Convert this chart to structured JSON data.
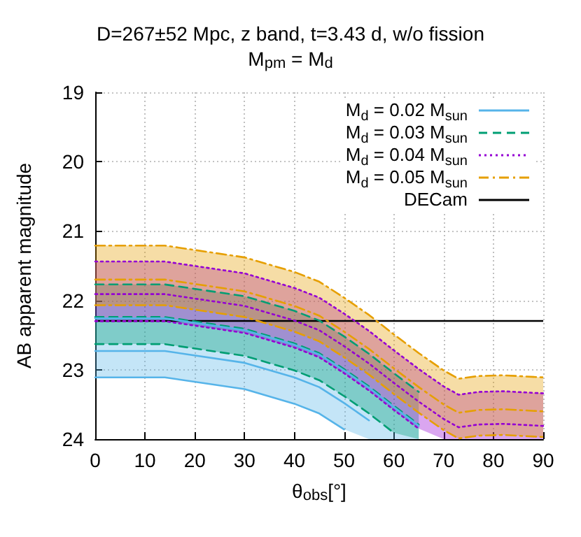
{
  "chart_data": {
    "type": "line",
    "title": "D=267±52 Mpc, z band, t=3.43 d, w/o fission",
    "subtitle": "M$_{pm}$ = M$_{d}$",
    "xlabel": "θ$_{obs}$[°]",
    "ylabel": "AB apparent magnitude",
    "x": [
      0,
      14,
      30,
      40,
      45,
      50,
      55,
      60,
      65,
      70,
      73,
      77,
      82,
      90
    ],
    "series": [
      {
        "name": "M$_{d}$ = 0.02 M$_{sun}$",
        "color": "#56b4e9",
        "line_style": "solid",
        "values": [
          22.73,
          22.73,
          22.9,
          23.11,
          23.25,
          23.48,
          23.73,
          null,
          null,
          null,
          null,
          null,
          null,
          null
        ],
        "lower": [
          22.26,
          22.26,
          22.43,
          22.64,
          22.78,
          23.01,
          23.26,
          23.54,
          23.81,
          null,
          null,
          null,
          null,
          null
        ],
        "upper": [
          23.11,
          23.11,
          23.28,
          23.49,
          23.63,
          23.86,
          24,
          24,
          24,
          null,
          null,
          null,
          null,
          null
        ]
      },
      {
        "name": "M$_{d}$ = 0.03 M$_{sun}$",
        "color": "#009e73",
        "line_style": "dashed",
        "values": [
          22.24,
          22.24,
          22.41,
          22.62,
          22.76,
          22.99,
          23.24,
          23.52,
          23.79,
          null,
          null,
          null,
          null,
          null
        ],
        "lower": [
          21.77,
          21.77,
          21.94,
          22.15,
          22.29,
          22.52,
          22.77,
          23.05,
          23.32,
          null,
          null,
          null,
          null,
          null
        ],
        "upper": [
          22.63,
          22.63,
          22.8,
          23.01,
          23.15,
          23.38,
          23.63,
          23.91,
          24,
          null,
          null,
          null,
          null,
          null
        ]
      },
      {
        "name": "M$_{d}$ = 0.04 M$_{sun}$",
        "color": "#9400d3",
        "line_style": "dotted",
        "values": [
          21.91,
          21.91,
          22.08,
          22.29,
          22.43,
          22.66,
          22.91,
          23.19,
          23.46,
          23.71,
          23.83,
          23.79,
          23.78,
          23.81
        ],
        "lower": [
          21.44,
          21.44,
          21.61,
          21.82,
          21.96,
          22.19,
          22.44,
          22.72,
          22.99,
          23.24,
          23.36,
          23.32,
          23.31,
          23.34
        ],
        "upper": [
          22.3,
          22.3,
          22.47,
          22.68,
          22.82,
          23.05,
          23.3,
          23.58,
          23.85,
          24,
          24,
          24,
          24,
          24
        ]
      },
      {
        "name": "M$_{d}$ = 0.05 M$_{sun}$",
        "color": "#e69f00",
        "line_style": "dashdot",
        "values": [
          21.7,
          21.7,
          21.87,
          22.08,
          22.22,
          22.45,
          22.7,
          22.98,
          23.25,
          23.5,
          23.62,
          23.58,
          23.57,
          23.6
        ],
        "lower": [
          21.21,
          21.21,
          21.38,
          21.59,
          21.73,
          21.96,
          22.21,
          22.49,
          22.76,
          23.01,
          23.13,
          23.09,
          23.08,
          23.11
        ],
        "upper": [
          22.07,
          22.07,
          22.24,
          22.45,
          22.59,
          22.82,
          23.07,
          23.35,
          23.62,
          23.87,
          23.99,
          23.95,
          23.94,
          23.97
        ]
      },
      {
        "color": "#56b4e9",
        "line_style": "solid",
        "values": [
          22.26,
          22.26,
          22.43,
          22.64,
          22.78,
          23.01,
          23.26,
          23.54,
          23.81,
          null,
          null,
          null,
          null,
          null
        ]
      },
      {
        "color": "#56b4e9",
        "line_style": "solid",
        "values": [
          23.11,
          23.11,
          23.28,
          23.49,
          23.63,
          23.86,
          null,
          null,
          null,
          null,
          null,
          null,
          null,
          null
        ]
      },
      {
        "color": "#009e73",
        "line_style": "dashed",
        "values": [
          21.77,
          21.77,
          21.94,
          22.15,
          22.29,
          22.52,
          22.77,
          23.05,
          23.32,
          null,
          null,
          null,
          null,
          null
        ]
      },
      {
        "color": "#009e73",
        "line_style": "dashed",
        "values": [
          22.63,
          22.63,
          22.8,
          23.01,
          23.15,
          23.38,
          23.63,
          23.91,
          null,
          null,
          null,
          null,
          null,
          null
        ]
      },
      {
        "color": "#9400d3",
        "line_style": "dotted",
        "values": [
          21.44,
          21.44,
          21.61,
          21.82,
          21.96,
          22.19,
          22.44,
          22.72,
          22.99,
          23.24,
          23.36,
          23.32,
          23.31,
          23.34
        ]
      },
      {
        "color": "#9400d3",
        "line_style": "dotted",
        "values": [
          22.3,
          22.3,
          22.47,
          22.68,
          22.82,
          23.05,
          23.3,
          23.58,
          23.85,
          null,
          null,
          null,
          null,
          null
        ]
      },
      {
        "color": "#e69f00",
        "line_style": "dashdot",
        "values": [
          21.21,
          21.21,
          21.38,
          21.59,
          21.73,
          21.96,
          22.21,
          22.49,
          22.76,
          23.01,
          23.13,
          23.09,
          23.08,
          23.11
        ]
      },
      {
        "color": "#e69f00",
        "line_style": "dashdot",
        "values": [
          22.07,
          22.07,
          22.24,
          22.45,
          22.59,
          22.82,
          23.07,
          23.35,
          23.62,
          23.87,
          23.99,
          23.95,
          23.94,
          23.97
        ]
      }
    ],
    "ref_lines": [
      {
        "axis": "y",
        "value": 22.3,
        "label": "DECam",
        "color": "#000000",
        "line_style": "solid"
      }
    ],
    "xlim": [
      0,
      90
    ],
    "xticks": [
      0,
      10,
      20,
      30,
      40,
      50,
      60,
      70,
      80,
      90
    ],
    "ylim": [
      24,
      19
    ],
    "yticks": [
      19,
      20,
      21,
      22,
      23,
      24
    ],
    "grid": true,
    "legend": "top right",
    "marker": "none"
  }
}
